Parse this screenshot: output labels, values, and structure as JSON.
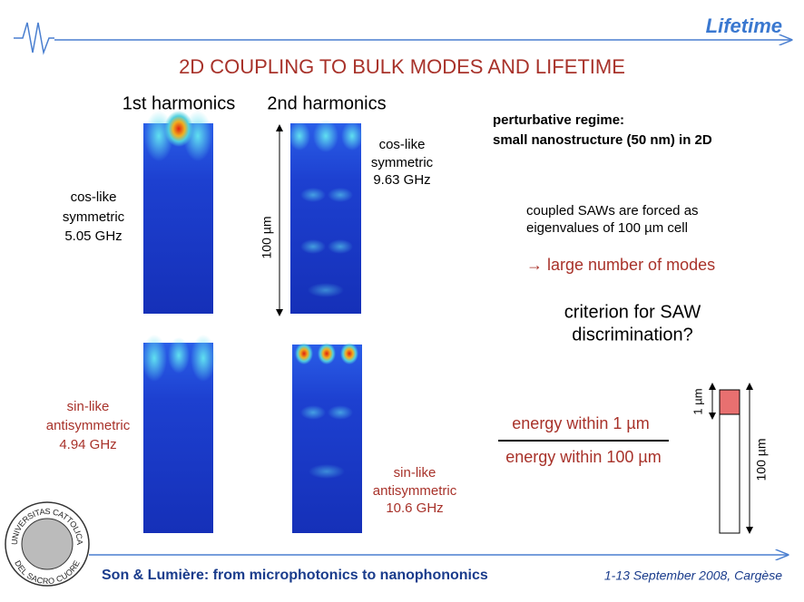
{
  "header": {
    "section": "Lifetime",
    "title": "2D COUPLING TO BULK MODES AND LIFETIME"
  },
  "columns": [
    "1st harmonics",
    "2nd harmonics"
  ],
  "modes": [
    {
      "lines": [
        "cos-like",
        "symmetric",
        "5.05 GHz"
      ]
    },
    {
      "lines": [
        "cos-like",
        "symmetric",
        "9.63 GHz"
      ]
    },
    {
      "lines": [
        "sin-like",
        "antisymmetric",
        "4.94 GHz"
      ]
    },
    {
      "lines": [
        "sin-like",
        "antisymmetric",
        "10.6 GHz"
      ]
    }
  ],
  "scale_label": "100 µm",
  "notes": {
    "regime": [
      "perturbative regime:",
      "small nanostructure (50 nm) in 2D"
    ],
    "coupled": [
      "coupled SAWs are forced as",
      "eigenvalues of 100 µm cell"
    ],
    "consequence": "→ large number of modes",
    "criterion": [
      "criterion for SAW",
      "discrimination?"
    ]
  },
  "fraction": {
    "numerator": "energy within 1 µm",
    "denominator": "energy within 100 µm"
  },
  "cell_diagram": {
    "top_label": "1 µm",
    "full_label": "100 µm"
  },
  "logo": {
    "text": [
      "UNIVERSITAS CATTOLICA",
      "DEL SACRO CUORE"
    ]
  },
  "footer": {
    "left": "Son & Lumière: from microphotonics to nanophononics",
    "right": "1-13 September 2008, Cargèse"
  }
}
